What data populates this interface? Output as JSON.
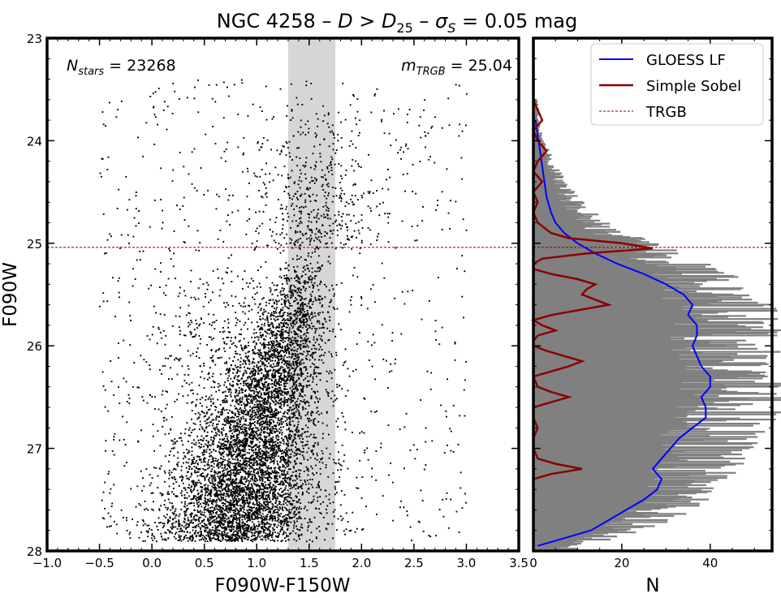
{
  "figure": {
    "title": "NGC 4258 – D > D25 – σS = 0.05 mag",
    "title_parts": [
      "NGC 4258 – ",
      "D",
      " > ",
      "D",
      "25",
      " – ",
      "σ",
      "S",
      " = 0.05 mag"
    ]
  },
  "chart_data": [
    {
      "type": "scatter",
      "panel": "cmd",
      "xlabel": "F090W-F150W",
      "ylabel": "F090W",
      "xlim": [
        -1.0,
        3.5
      ],
      "ylim": [
        28,
        23
      ],
      "y_inverted": true,
      "x_ticks": [
        "−1.0",
        "−0.5",
        "0.0",
        "0.5",
        "1.0",
        "1.5",
        "2.0",
        "2.5",
        "3.0",
        "3.5"
      ],
      "x_tick_values": [
        -1.0,
        -0.5,
        0.0,
        0.5,
        1.0,
        1.5,
        2.0,
        2.5,
        3.0,
        3.5
      ],
      "y_ticks": [
        "23",
        "24",
        "25",
        "26",
        "27",
        "28"
      ],
      "y_tick_values": [
        23,
        24,
        25,
        26,
        27,
        28
      ],
      "annotations": {
        "n_stars": {
          "label_main": "N",
          "label_sub": "stars",
          "value_text": " = 23268",
          "position": "top-left"
        },
        "m_trgb": {
          "label_main": "m",
          "label_sub": "TRGB",
          "value_text": " = 25.04",
          "position": "top-right"
        }
      },
      "n_stars": 23268,
      "color_band": {
        "x_range": [
          1.3,
          1.75
        ],
        "color": "#d6d6d6"
      },
      "trgb": 25.04,
      "trgb_color": "#8b0000",
      "point_color": "#000000",
      "density_note": "dense red giant branch between colors 0.8 and 1.8 below TRGB, sparse halo of points elsewhere"
    },
    {
      "type": "line",
      "panel": "luminosity-function",
      "xlabel": "N",
      "xlim": [
        0,
        54
      ],
      "ylim": [
        28,
        23
      ],
      "x_ticks": [
        "0",
        "20",
        "40"
      ],
      "x_tick_values": [
        0,
        20,
        40
      ],
      "legend_position": "top-right",
      "histogram": {
        "name": "",
        "color": "#808080",
        "description": "horizontal histogram of star counts per magnitude bin",
        "mag": [
          23.8,
          24.0,
          24.2,
          24.4,
          24.6,
          24.8,
          25.0,
          25.2,
          25.4,
          25.6,
          25.8,
          26.0,
          26.2,
          26.4,
          26.6,
          26.8,
          27.0,
          27.2,
          27.4,
          27.6,
          27.8,
          27.95
        ],
        "counts": [
          1,
          2,
          4,
          6,
          9,
          14,
          22,
          32,
          39,
          42,
          44,
          43,
          44,
          46,
          45,
          42,
          39,
          36,
          33,
          28,
          20,
          8
        ]
      },
      "series": [
        {
          "name": "GLOESS LF",
          "color": "#0000ff",
          "mag": [
            23.8,
            23.95,
            24.1,
            24.25,
            24.4,
            24.55,
            24.7,
            24.8,
            24.9,
            25.0,
            25.1,
            25.2,
            25.3,
            25.4,
            25.5,
            25.6,
            25.7,
            25.8,
            25.9,
            26.0,
            26.1,
            26.2,
            26.3,
            26.4,
            26.5,
            26.6,
            26.7,
            26.8,
            26.9,
            27.0,
            27.1,
            27.2,
            27.3,
            27.4,
            27.5,
            27.6,
            27.7,
            27.8,
            27.9,
            27.95
          ],
          "values": [
            0.5,
            1,
            1.5,
            2,
            2.5,
            3,
            4,
            5,
            7,
            10,
            14,
            19,
            25,
            30,
            34,
            36,
            35,
            37,
            37,
            36,
            37,
            38,
            40,
            40,
            38,
            39,
            39,
            36,
            33,
            31,
            29,
            27,
            29,
            28,
            25,
            21,
            17,
            13,
            5,
            1
          ]
        },
        {
          "name": "Simple Sobel",
          "color": "#8b0000",
          "mag": [
            23.6,
            23.7,
            23.8,
            23.9,
            24.0,
            24.1,
            24.2,
            24.3,
            24.4,
            24.5,
            24.6,
            24.7,
            24.8,
            24.9,
            24.95,
            25.0,
            25.05,
            25.1,
            25.15,
            25.2,
            25.25,
            25.3,
            25.35,
            25.4,
            25.45,
            25.5,
            25.55,
            25.6,
            25.7,
            25.75,
            25.8,
            25.85,
            25.9,
            25.95,
            26.0,
            26.05,
            26.1,
            26.15,
            26.2,
            26.3,
            26.4,
            26.45,
            26.5,
            26.55,
            26.6,
            26.7,
            26.8,
            26.9,
            27.0,
            27.1,
            27.15,
            27.2,
            27.25,
            27.3,
            27.4,
            27.6,
            27.8,
            27.95
          ],
          "values": [
            0,
            1,
            2,
            0,
            1,
            3,
            1,
            0,
            2,
            0,
            1,
            0,
            1,
            4,
            8,
            20,
            27,
            12,
            2,
            0,
            0,
            4,
            10,
            14,
            12,
            11,
            14,
            17,
            4,
            0,
            2,
            5,
            1,
            0,
            0,
            3,
            7,
            11,
            8,
            0,
            1,
            4,
            8,
            4,
            0,
            0,
            1,
            0,
            0,
            1,
            5,
            11,
            4,
            0,
            0,
            0,
            0,
            0
          ]
        },
        {
          "name": "TRGB",
          "color": "#8b0000",
          "style": "dashed",
          "value": 25.04
        }
      ]
    }
  ]
}
